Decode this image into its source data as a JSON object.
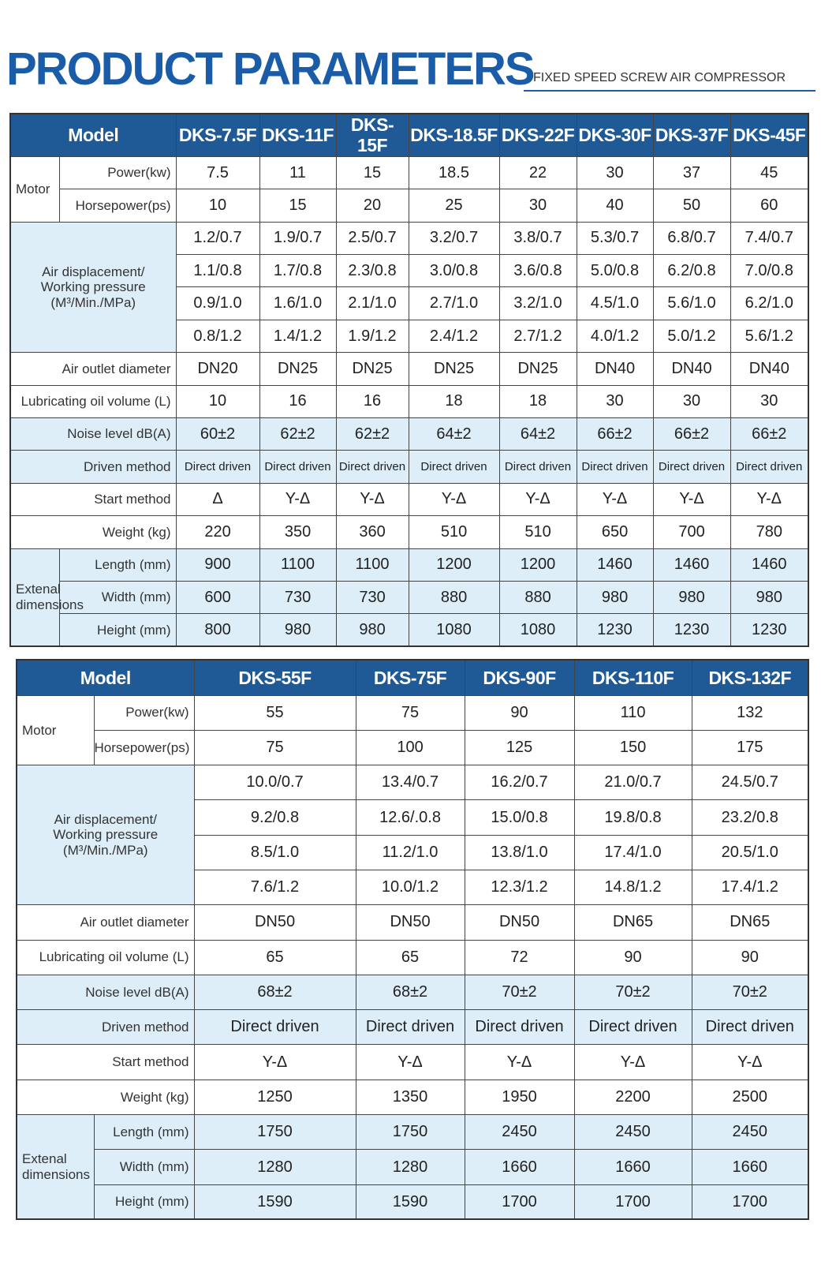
{
  "header": {
    "title": "PRODUCT PARAMETERS",
    "subtitle": "FIXED SPEED SCREW AIR COMPRESSOR"
  },
  "tables": [
    {
      "header": [
        "Model",
        "DKS-7.5F",
        "DKS-11F",
        "DKS-15F",
        "DKS-18.5F",
        "DKS-22F",
        "DKS-30F",
        "DKS-37F",
        "DKS-45F"
      ],
      "groups": [
        {
          "label": "Motor",
          "rows": [
            {
              "label": "Power(kw)",
              "cells": [
                "7.5",
                "11",
                "15",
                "18.5",
                "22",
                "30",
                "37",
                "45"
              ]
            },
            {
              "label": "Horsepower(ps)",
              "cells": [
                "10",
                "15",
                "20",
                "25",
                "30",
                "40",
                "50",
                "60"
              ]
            }
          ]
        },
        {
          "label": "Air displacement/\nWorking pressure\n(M³/Min./MPa)",
          "rows": [
            {
              "cells": [
                "1.2/0.7",
                "1.9/0.7",
                "2.5/0.7",
                "3.2/0.7",
                "3.8/0.7",
                "5.3/0.7",
                "6.8/0.7",
                "7.4/0.7"
              ]
            },
            {
              "cells": [
                "1.1/0.8",
                "1.7/0.8",
                "2.3/0.8",
                "3.0/0.8",
                "3.6/0.8",
                "5.0/0.8",
                "6.2/0.8",
                "7.0/0.8"
              ]
            },
            {
              "cells": [
                "0.9/1.0",
                "1.6/1.0",
                "2.1/1.0",
                "2.7/1.0",
                "3.2/1.0",
                "4.5/1.0",
                "5.6/1.0",
                "6.2/1.0"
              ]
            },
            {
              "cells": [
                "0.8/1.2",
                "1.4/1.2",
                "1.9/1.2",
                "2.4/1.2",
                "2.7/1.2",
                "4.0/1.2",
                "5.0/1.2",
                "5.6/1.2"
              ]
            }
          ]
        },
        {
          "label": "Air outlet diameter",
          "rows": [
            {
              "cells": [
                "DN20",
                "DN25",
                "DN25",
                "DN25",
                "DN25",
                "DN40",
                "DN40",
                "DN40"
              ]
            }
          ]
        },
        {
          "label": "Lubricating oil volume (L)",
          "rows": [
            {
              "cells": [
                "10",
                "16",
                "16",
                "18",
                "18",
                "30",
                "30",
                "30"
              ]
            }
          ]
        },
        {
          "label": "Noise level dB(A)",
          "rows": [
            {
              "cells": [
                "60±2",
                "62±2",
                "62±2",
                "64±2",
                "64±2",
                "66±2",
                "66±2",
                "66±2"
              ]
            }
          ]
        },
        {
          "label": "Driven method",
          "rows": [
            {
              "cells": [
                "Direct driven",
                "Direct driven",
                "Direct driven",
                "Direct driven",
                "Direct driven",
                "Direct driven",
                "Direct driven",
                "Direct driven"
              ]
            }
          ]
        },
        {
          "label": "Start method",
          "rows": [
            {
              "cells": [
                "Δ",
                "Y-Δ",
                "Y-Δ",
                "Y-Δ",
                "Y-Δ",
                "Y-Δ",
                "Y-Δ",
                "Y-Δ"
              ]
            }
          ]
        },
        {
          "label": "Weight (kg)",
          "rows": [
            {
              "cells": [
                "220",
                "350",
                "360",
                "510",
                "510",
                "650",
                "700",
                "780"
              ]
            }
          ]
        },
        {
          "label": "Extenal\ndimensions",
          "rows": [
            {
              "label": "Length (mm)",
              "cells": [
                "900",
                "1100",
                "1100",
                "1200",
                "1200",
                "1460",
                "1460",
                "1460"
              ]
            },
            {
              "label": "Width (mm)",
              "cells": [
                "600",
                "730",
                "730",
                "880",
                "880",
                "980",
                "980",
                "980"
              ]
            },
            {
              "label": "Height (mm)",
              "cells": [
                "800",
                "980",
                "980",
                "1080",
                "1080",
                "1230",
                "1230",
                "1230"
              ]
            }
          ]
        }
      ]
    },
    {
      "header": [
        "Model",
        "DKS-55F",
        "DKS-75F",
        "DKS-90F",
        "DKS-110F",
        "DKS-132F"
      ],
      "groups": [
        {
          "label": "Motor",
          "rows": [
            {
              "label": "Power(kw)",
              "cells": [
                "55",
                "75",
                "90",
                "110",
                "132"
              ]
            },
            {
              "label": "Horsepower(ps)",
              "cells": [
                "75",
                "100",
                "125",
                "150",
                "175"
              ]
            }
          ]
        },
        {
          "label": "Air displacement/\nWorking pressure\n(M³/Min./MPa)",
          "rows": [
            {
              "cells": [
                "10.0/0.7",
                "13.4/0.7",
                "16.2/0.7",
                "21.0/0.7",
                "24.5/0.7"
              ]
            },
            {
              "cells": [
                "9.2/0.8",
                "12.6/.0.8",
                "15.0/0.8",
                "19.8/0.8",
                "23.2/0.8"
              ]
            },
            {
              "cells": [
                "8.5/1.0",
                "11.2/1.0",
                "13.8/1.0",
                "17.4/1.0",
                "20.5/1.0"
              ]
            },
            {
              "cells": [
                "7.6/1.2",
                "10.0/1.2",
                "12.3/1.2",
                "14.8/1.2",
                "17.4/1.2"
              ]
            }
          ]
        },
        {
          "label": "Air outlet diameter",
          "rows": [
            {
              "cells": [
                "DN50",
                "DN50",
                "DN50",
                "DN65",
                "DN65"
              ]
            }
          ]
        },
        {
          "label": "Lubricating oil volume (L)",
          "rows": [
            {
              "cells": [
                "65",
                "65",
                "72",
                "90",
                "90"
              ]
            }
          ]
        },
        {
          "label": "Noise level dB(A)",
          "rows": [
            {
              "cells": [
                "68±2",
                "68±2",
                "70±2",
                "70±2",
                "70±2"
              ]
            }
          ]
        },
        {
          "label": "Driven method",
          "rows": [
            {
              "cells": [
                "Direct driven",
                "Direct driven",
                "Direct driven",
                "Direct driven",
                "Direct driven"
              ]
            }
          ]
        },
        {
          "label": "Start method",
          "rows": [
            {
              "cells": [
                "Y-Δ",
                "Y-Δ",
                "Y-Δ",
                "Y-Δ",
                "Y-Δ"
              ]
            }
          ]
        },
        {
          "label": "Weight (kg)",
          "rows": [
            {
              "cells": [
                "1250",
                "1350",
                "1950",
                "2200",
                "2500"
              ]
            }
          ]
        },
        {
          "label": "Extenal\ndimensions",
          "rows": [
            {
              "label": "Length (mm)",
              "cells": [
                "1750",
                "1750",
                "2450",
                "2450",
                "2450"
              ]
            },
            {
              "label": "Width (mm)",
              "cells": [
                "1280",
                "1280",
                "1660",
                "1660",
                "1660"
              ]
            },
            {
              "label": "Height (mm)",
              "cells": [
                "1590",
                "1590",
                "1700",
                "1700",
                "1700"
              ]
            }
          ]
        }
      ]
    }
  ]
}
